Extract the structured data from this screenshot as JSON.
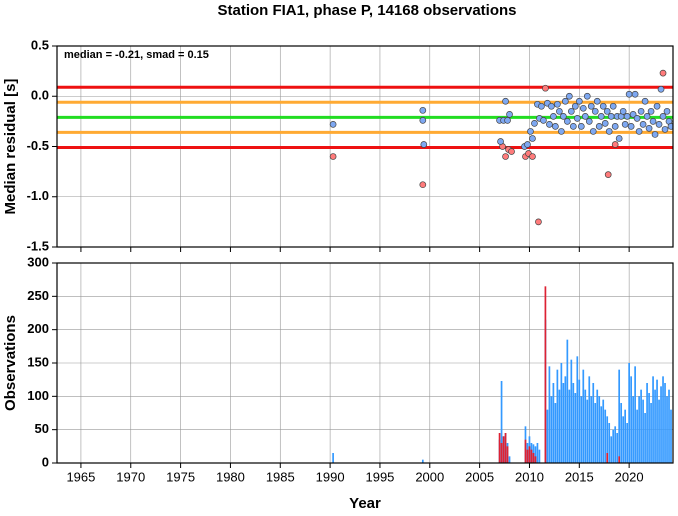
{
  "chart_data": [
    {
      "type": "scatter",
      "title": "Station FIA1, phase P, 14168 observations",
      "ylabel": "Median residual [s]",
      "annotation": "median = -0.21, smad = 0.15",
      "xlim": [
        1962.6,
        2024.4
      ],
      "xticks": [
        1965,
        1970,
        1975,
        1980,
        1985,
        1990,
        1995,
        2000,
        2005,
        2010,
        2015,
        2020
      ],
      "ylim": [
        -1.5,
        0.5
      ],
      "yticks": [
        0.5,
        {
          "value": 0,
          "label": "0.0"
        },
        -0.5,
        {
          "value": -1,
          "label": "-1.0"
        },
        -1.5
      ],
      "grid": true,
      "hlines": [
        {
          "value": 0.09,
          "color": "#ee1111"
        },
        {
          "value": -0.06,
          "color": "#ffaa33"
        },
        {
          "value": -0.21,
          "color": "#22dd22"
        },
        {
          "value": -0.36,
          "color": "#ffaa33"
        },
        {
          "value": -0.51,
          "color": "#ee1111"
        }
      ],
      "series": [
        {
          "color": "#ff7b7b",
          "x": [
            1990.3,
            1999.3,
            2007.3,
            2007.6,
            2007.9,
            2008.2,
            2009.6,
            2009.9,
            2010.3,
            2010.9,
            2011.6,
            2017.9,
            2018.6,
            2023.4
          ],
          "values": [
            -0.6,
            -0.88,
            -0.5,
            -0.6,
            -0.53,
            -0.55,
            -0.6,
            -0.57,
            -0.6,
            -1.25,
            0.08,
            -0.78,
            -0.48,
            0.23
          ]
        },
        {
          "color": "#7ea8f2",
          "x": [
            1990.3,
            1999.3,
            1999.3,
            1999.4,
            2007.0,
            2007.1,
            2007.4,
            2007.6,
            2007.8,
            2008.0,
            2009.5,
            2009.8,
            2010.1,
            2010.3,
            2010.5,
            2010.8,
            2011.0,
            2011.2,
            2011.4,
            2011.8,
            2012.0,
            2012.2,
            2012.4,
            2012.6,
            2012.8,
            2013.0,
            2013.2,
            2013.4,
            2013.6,
            2013.8,
            2014.0,
            2014.2,
            2014.4,
            2014.6,
            2014.8,
            2015.0,
            2015.2,
            2015.4,
            2015.6,
            2015.8,
            2016.0,
            2016.2,
            2016.4,
            2016.6,
            2016.8,
            2017.0,
            2017.2,
            2017.4,
            2017.6,
            2017.8,
            2018.0,
            2018.2,
            2018.4,
            2018.6,
            2018.8,
            2019.0,
            2019.2,
            2019.4,
            2019.6,
            2019.8,
            2020.0,
            2020.2,
            2020.4,
            2020.6,
            2020.8,
            2021.0,
            2021.2,
            2021.4,
            2021.6,
            2021.8,
            2022.0,
            2022.2,
            2022.4,
            2022.6,
            2022.8,
            2023.0,
            2023.2,
            2023.4,
            2023.6,
            2023.8,
            2024.0,
            2024.2
          ],
          "values": [
            -0.28,
            -0.14,
            -0.24,
            -0.48,
            -0.24,
            -0.45,
            -0.24,
            -0.05,
            -0.24,
            -0.18,
            -0.5,
            -0.48,
            -0.35,
            -0.42,
            -0.27,
            -0.08,
            -0.22,
            -0.1,
            -0.24,
            -0.07,
            -0.28,
            -0.1,
            -0.2,
            -0.3,
            -0.08,
            -0.15,
            -0.35,
            -0.2,
            -0.05,
            -0.25,
            0,
            -0.15,
            -0.3,
            -0.1,
            -0.22,
            -0.05,
            -0.3,
            -0.12,
            -0.2,
            0,
            -0.25,
            -0.1,
            -0.35,
            -0.15,
            -0.05,
            -0.3,
            -0.2,
            -0.1,
            -0.27,
            -0.15,
            -0.35,
            -0.2,
            -0.1,
            -0.3,
            -0.2,
            -0.42,
            -0.2,
            -0.15,
            -0.28,
            -0.2,
            0.02,
            -0.3,
            -0.18,
            0.02,
            -0.22,
            -0.35,
            -0.15,
            -0.28,
            -0.05,
            -0.2,
            -0.32,
            -0.15,
            -0.25,
            -0.38,
            -0.1,
            -0.28,
            0.07,
            -0.2,
            -0.33,
            -0.15,
            -0.25,
            -0.3
          ]
        }
      ]
    },
    {
      "type": "bar",
      "ylabel": "Observations",
      "xlabel": "Year",
      "xlim": [
        1962.6,
        2024.4
      ],
      "xticks": [
        1965,
        1970,
        1975,
        1980,
        1985,
        1990,
        1995,
        2000,
        2005,
        2010,
        2015,
        2020
      ],
      "ylim": [
        0,
        300
      ],
      "yticks": [
        0,
        50,
        100,
        150,
        200,
        250,
        300
      ],
      "grid": true,
      "x": [
        1990.3,
        1999.3,
        2007.0,
        2007.2,
        2007.4,
        2007.6,
        2007.8,
        2008.0,
        2008.2,
        2008.4,
        2008.6,
        2008.8,
        2009.0,
        2009.2,
        2009.4,
        2009.6,
        2009.8,
        2010.0,
        2010.2,
        2010.4,
        2010.6,
        2010.8,
        2011.0,
        2011.2,
        2011.4,
        2011.6,
        2011.8,
        2012.0,
        2012.2,
        2012.4,
        2012.6,
        2012.8,
        2013.0,
        2013.2,
        2013.4,
        2013.6,
        2013.8,
        2014.0,
        2014.2,
        2014.4,
        2014.6,
        2014.8,
        2015.0,
        2015.2,
        2015.4,
        2015.6,
        2015.8,
        2016.0,
        2016.2,
        2016.4,
        2016.6,
        2016.8,
        2017.0,
        2017.2,
        2017.4,
        2017.6,
        2017.8,
        2018.0,
        2018.2,
        2018.4,
        2018.6,
        2018.8,
        2019.0,
        2019.2,
        2019.4,
        2019.6,
        2019.8,
        2020.0,
        2020.2,
        2020.4,
        2020.6,
        2020.8,
        2021.0,
        2021.2,
        2021.4,
        2021.6,
        2021.8,
        2022.0,
        2022.2,
        2022.4,
        2022.6,
        2022.8,
        2023.0,
        2023.2,
        2023.4,
        2023.6,
        2023.8,
        2024.0,
        2024.2
      ],
      "series": [
        {
          "color": "#3399ff",
          "values": [
            15,
            5,
            35,
            123,
            40,
            45,
            30,
            10,
            0,
            0,
            0,
            0,
            0,
            0,
            0,
            55,
            30,
            40,
            30,
            28,
            25,
            30,
            20,
            0,
            0,
            215,
            80,
            145,
            100,
            120,
            90,
            140,
            110,
            150,
            120,
            130,
            185,
            110,
            155,
            120,
            105,
            160,
            125,
            100,
            140,
            110,
            95,
            130,
            100,
            120,
            90,
            110,
            100,
            85,
            95,
            80,
            70,
            60,
            40,
            50,
            55,
            45,
            140,
            90,
            70,
            80,
            60,
            150,
            130,
            100,
            145,
            80,
            100,
            110,
            95,
            75,
            120,
            105,
            90,
            130,
            110,
            125,
            95,
            115,
            130,
            120,
            100,
            110,
            80
          ]
        },
        {
          "color": "#dd2233",
          "values": [
            0,
            0,
            45,
            30,
            40,
            45,
            25,
            0,
            0,
            0,
            0,
            0,
            0,
            0,
            0,
            35,
            20,
            25,
            20,
            15,
            10,
            0,
            0,
            0,
            0,
            265,
            0,
            0,
            0,
            0,
            0,
            0,
            0,
            0,
            0,
            0,
            0,
            0,
            0,
            0,
            0,
            0,
            0,
            0,
            0,
            0,
            0,
            0,
            0,
            0,
            0,
            0,
            0,
            0,
            0,
            0,
            15,
            0,
            0,
            0,
            0,
            0,
            10,
            0,
            0,
            0,
            0,
            0,
            0,
            0,
            0,
            0,
            0,
            0,
            0,
            0,
            0,
            0,
            0,
            0,
            0,
            0,
            0,
            0,
            0,
            0,
            0,
            0,
            0
          ]
        }
      ]
    }
  ]
}
